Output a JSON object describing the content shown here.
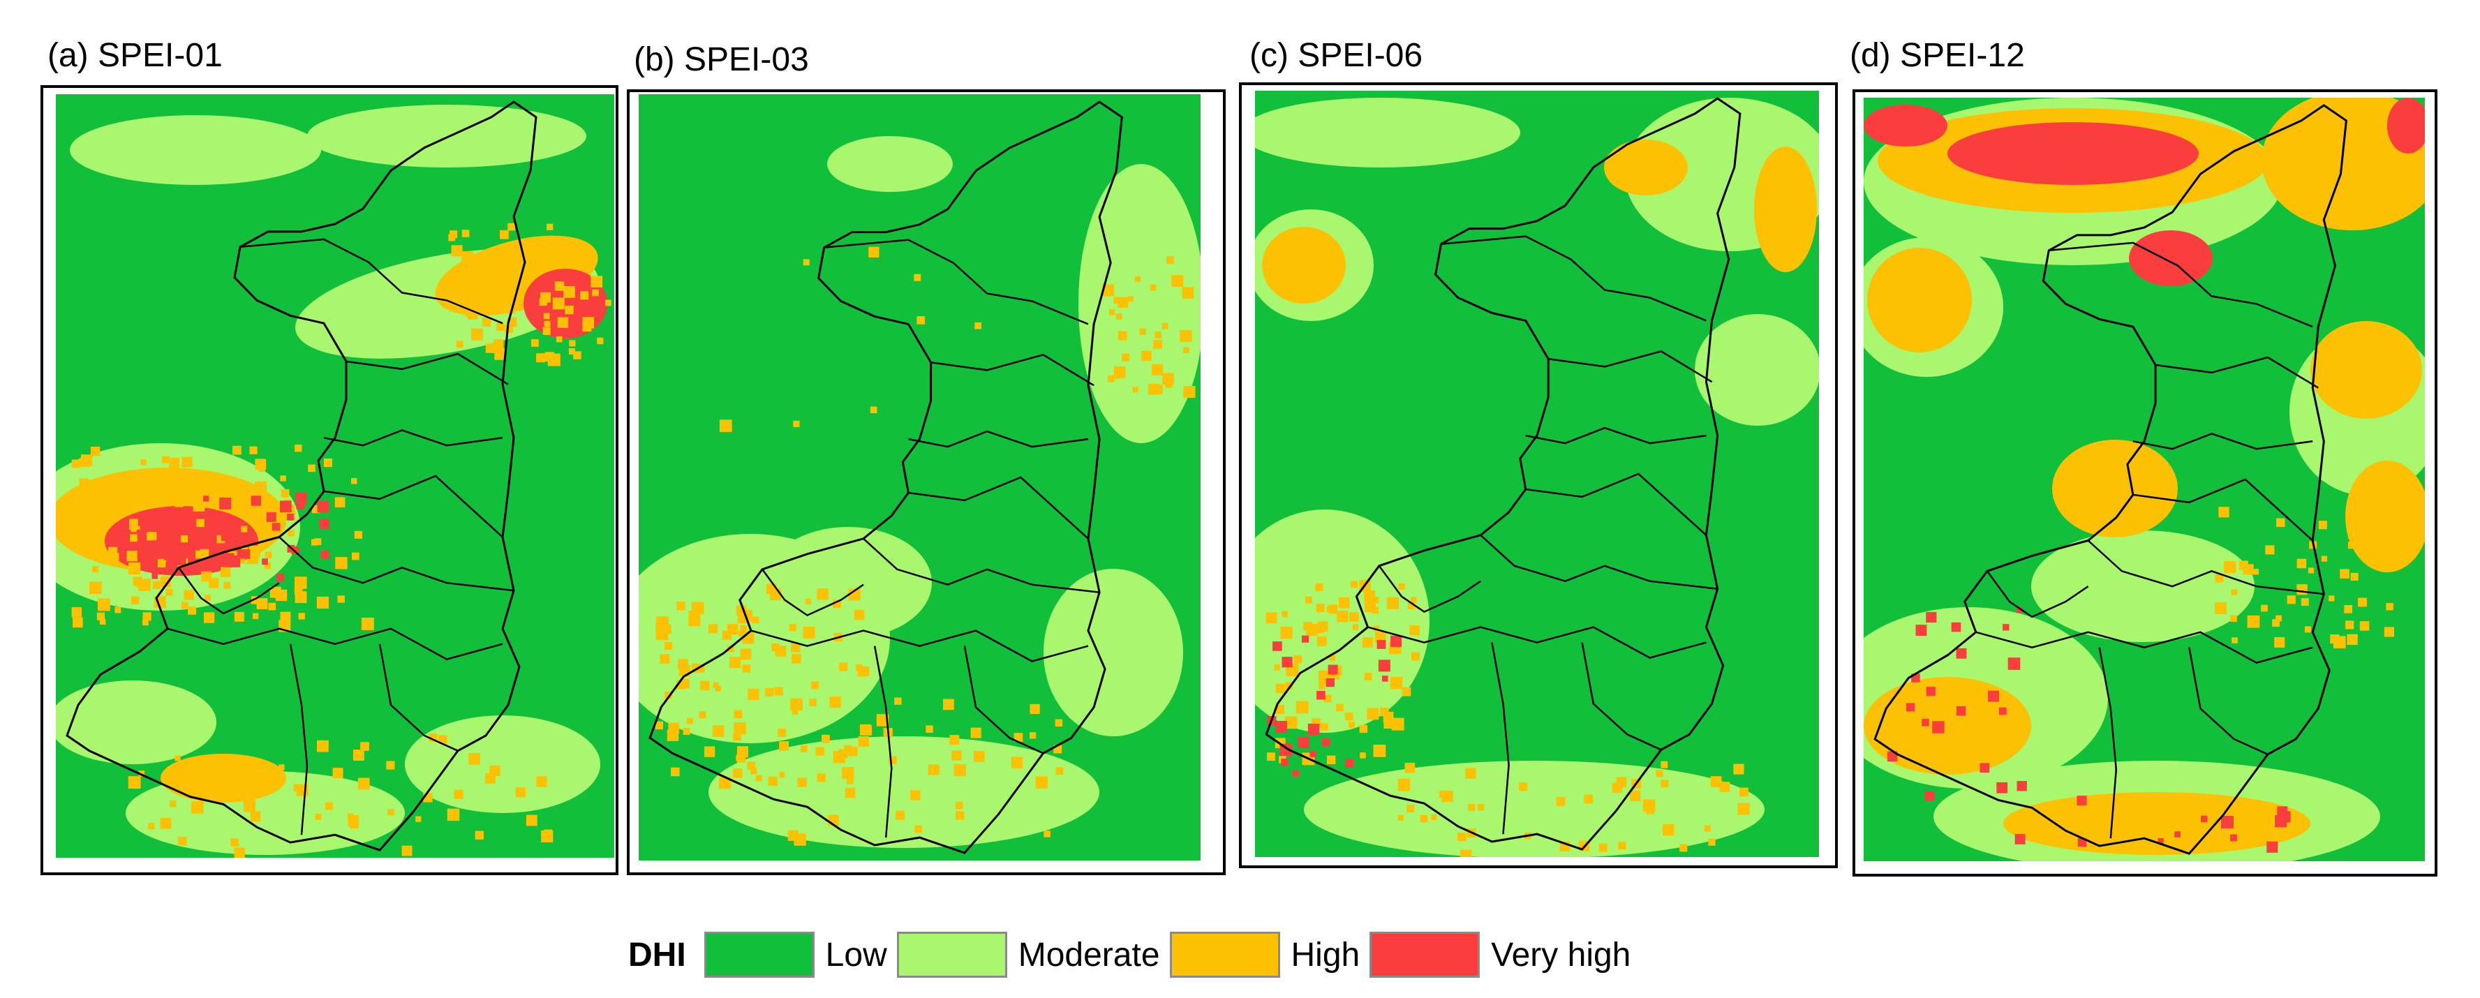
{
  "panels": [
    {
      "id": "a",
      "title": "(a) SPEI-01"
    },
    {
      "id": "b",
      "title": "(b) SPEI-03"
    },
    {
      "id": "c",
      "title": "(c) SPEI-06"
    },
    {
      "id": "d",
      "title": "(d) SPEI-12"
    }
  ],
  "legend": {
    "title": "DHI",
    "items": [
      {
        "label": "Low",
        "color": "#12bf3a"
      },
      {
        "label": "Moderate",
        "color": "#a8f76e"
      },
      {
        "label": "High",
        "color": "#fdc103"
      },
      {
        "label": "Very high",
        "color": "#fa3e3e"
      }
    ]
  },
  "colors": {
    "low": "#12bf3a",
    "moderate": "#a8f76e",
    "high": "#fdc103",
    "very_high": "#fa3e3e",
    "boundary": "#000000"
  }
}
